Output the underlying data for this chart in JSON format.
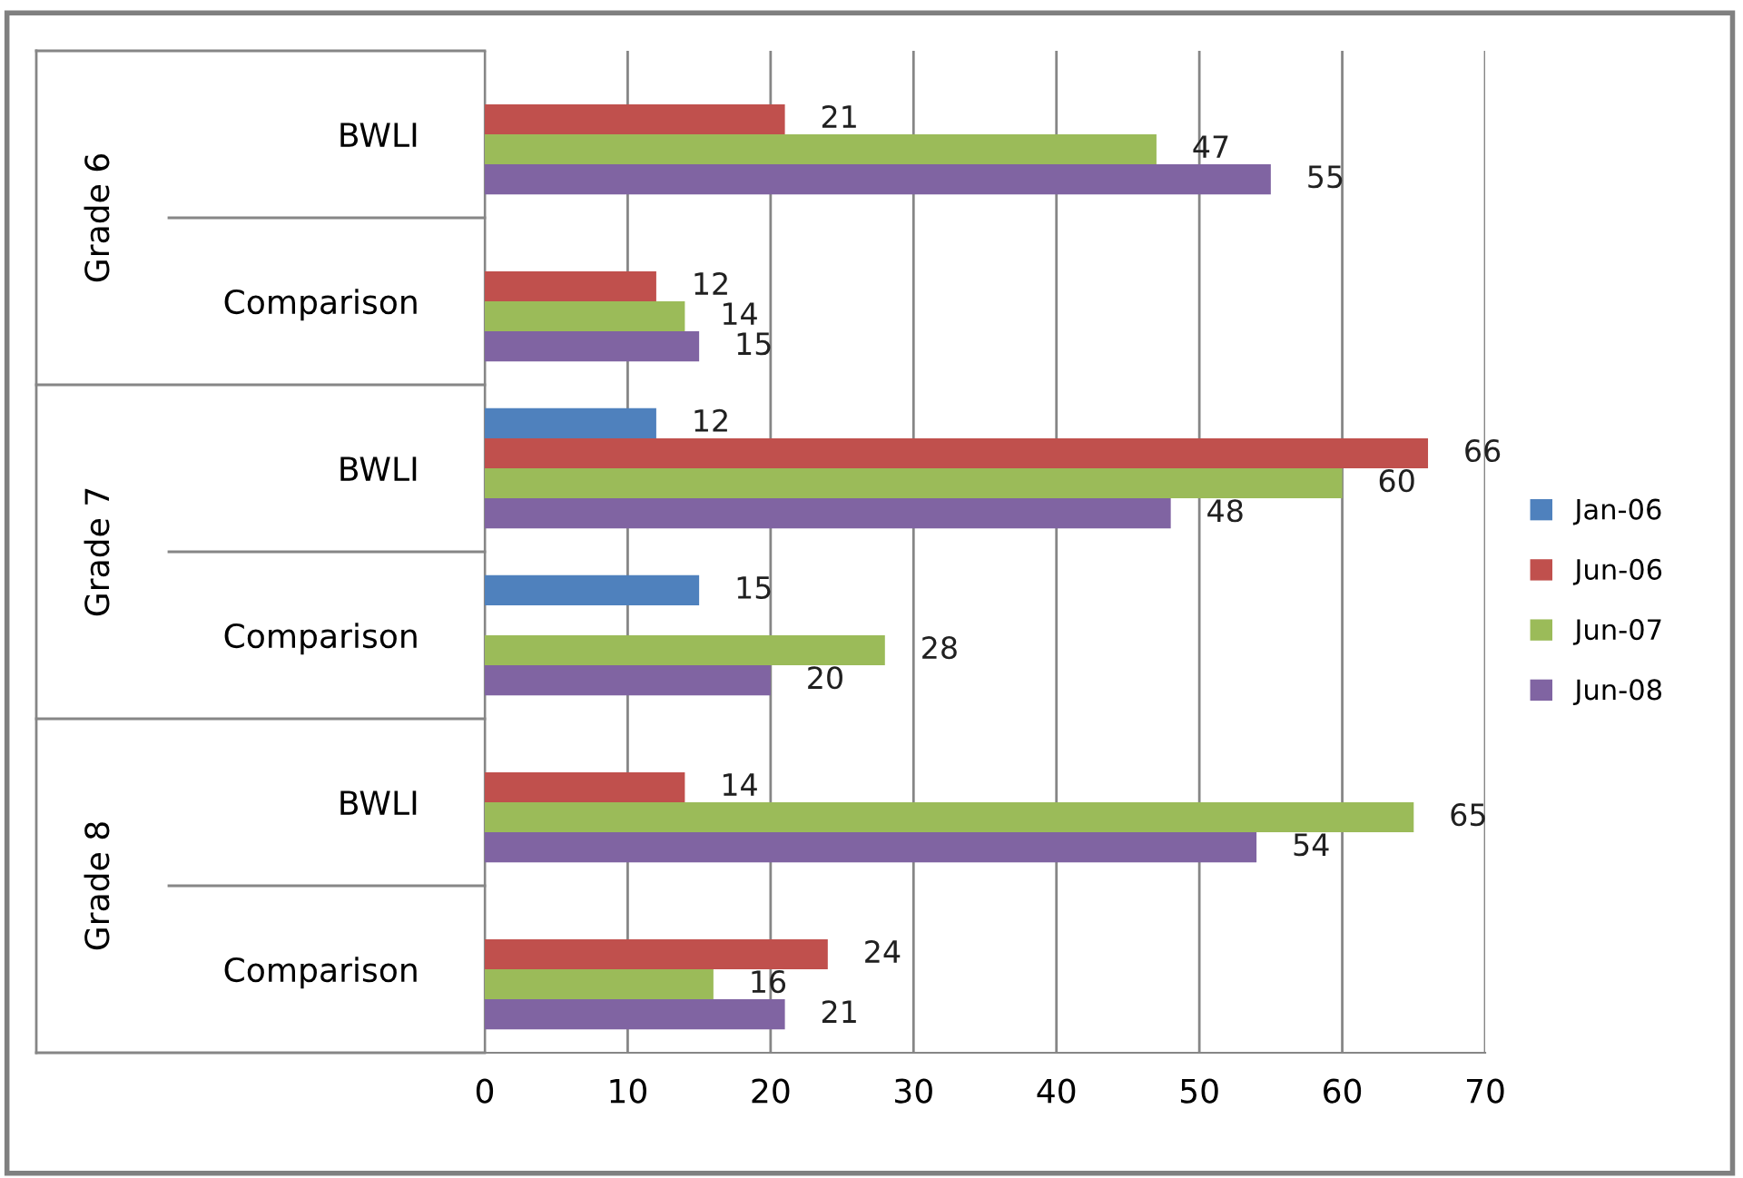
{
  "chart_data": {
    "type": "bar",
    "orientation": "horizontal",
    "categories": [
      "BWLI",
      "Comparison",
      "BWLI",
      "Comparison",
      "BWLI",
      "Comparison"
    ],
    "annotations": [
      "Grade 6",
      "Grade 7",
      "Grade 8"
    ],
    "series": [
      {
        "name": "Jan-06",
        "color": "#4f81bd",
        "values": [
          null,
          null,
          12,
          15,
          null,
          null
        ]
      },
      {
        "name": "Jun-06",
        "color": "#c0504d",
        "values": [
          21,
          12,
          66,
          null,
          14,
          24
        ]
      },
      {
        "name": "Jun-07",
        "color": "#9bbb59",
        "values": [
          47,
          14,
          60,
          28,
          65,
          16
        ]
      },
      {
        "name": "Jun-08",
        "color": "#8064a2",
        "values": [
          55,
          15,
          48,
          20,
          54,
          21
        ]
      }
    ],
    "xlim": [
      0,
      70
    ],
    "xticks": [
      0,
      10,
      20,
      30,
      40,
      50,
      60,
      70
    ],
    "grid": "x",
    "legend": "right",
    "data_labels": true
  }
}
